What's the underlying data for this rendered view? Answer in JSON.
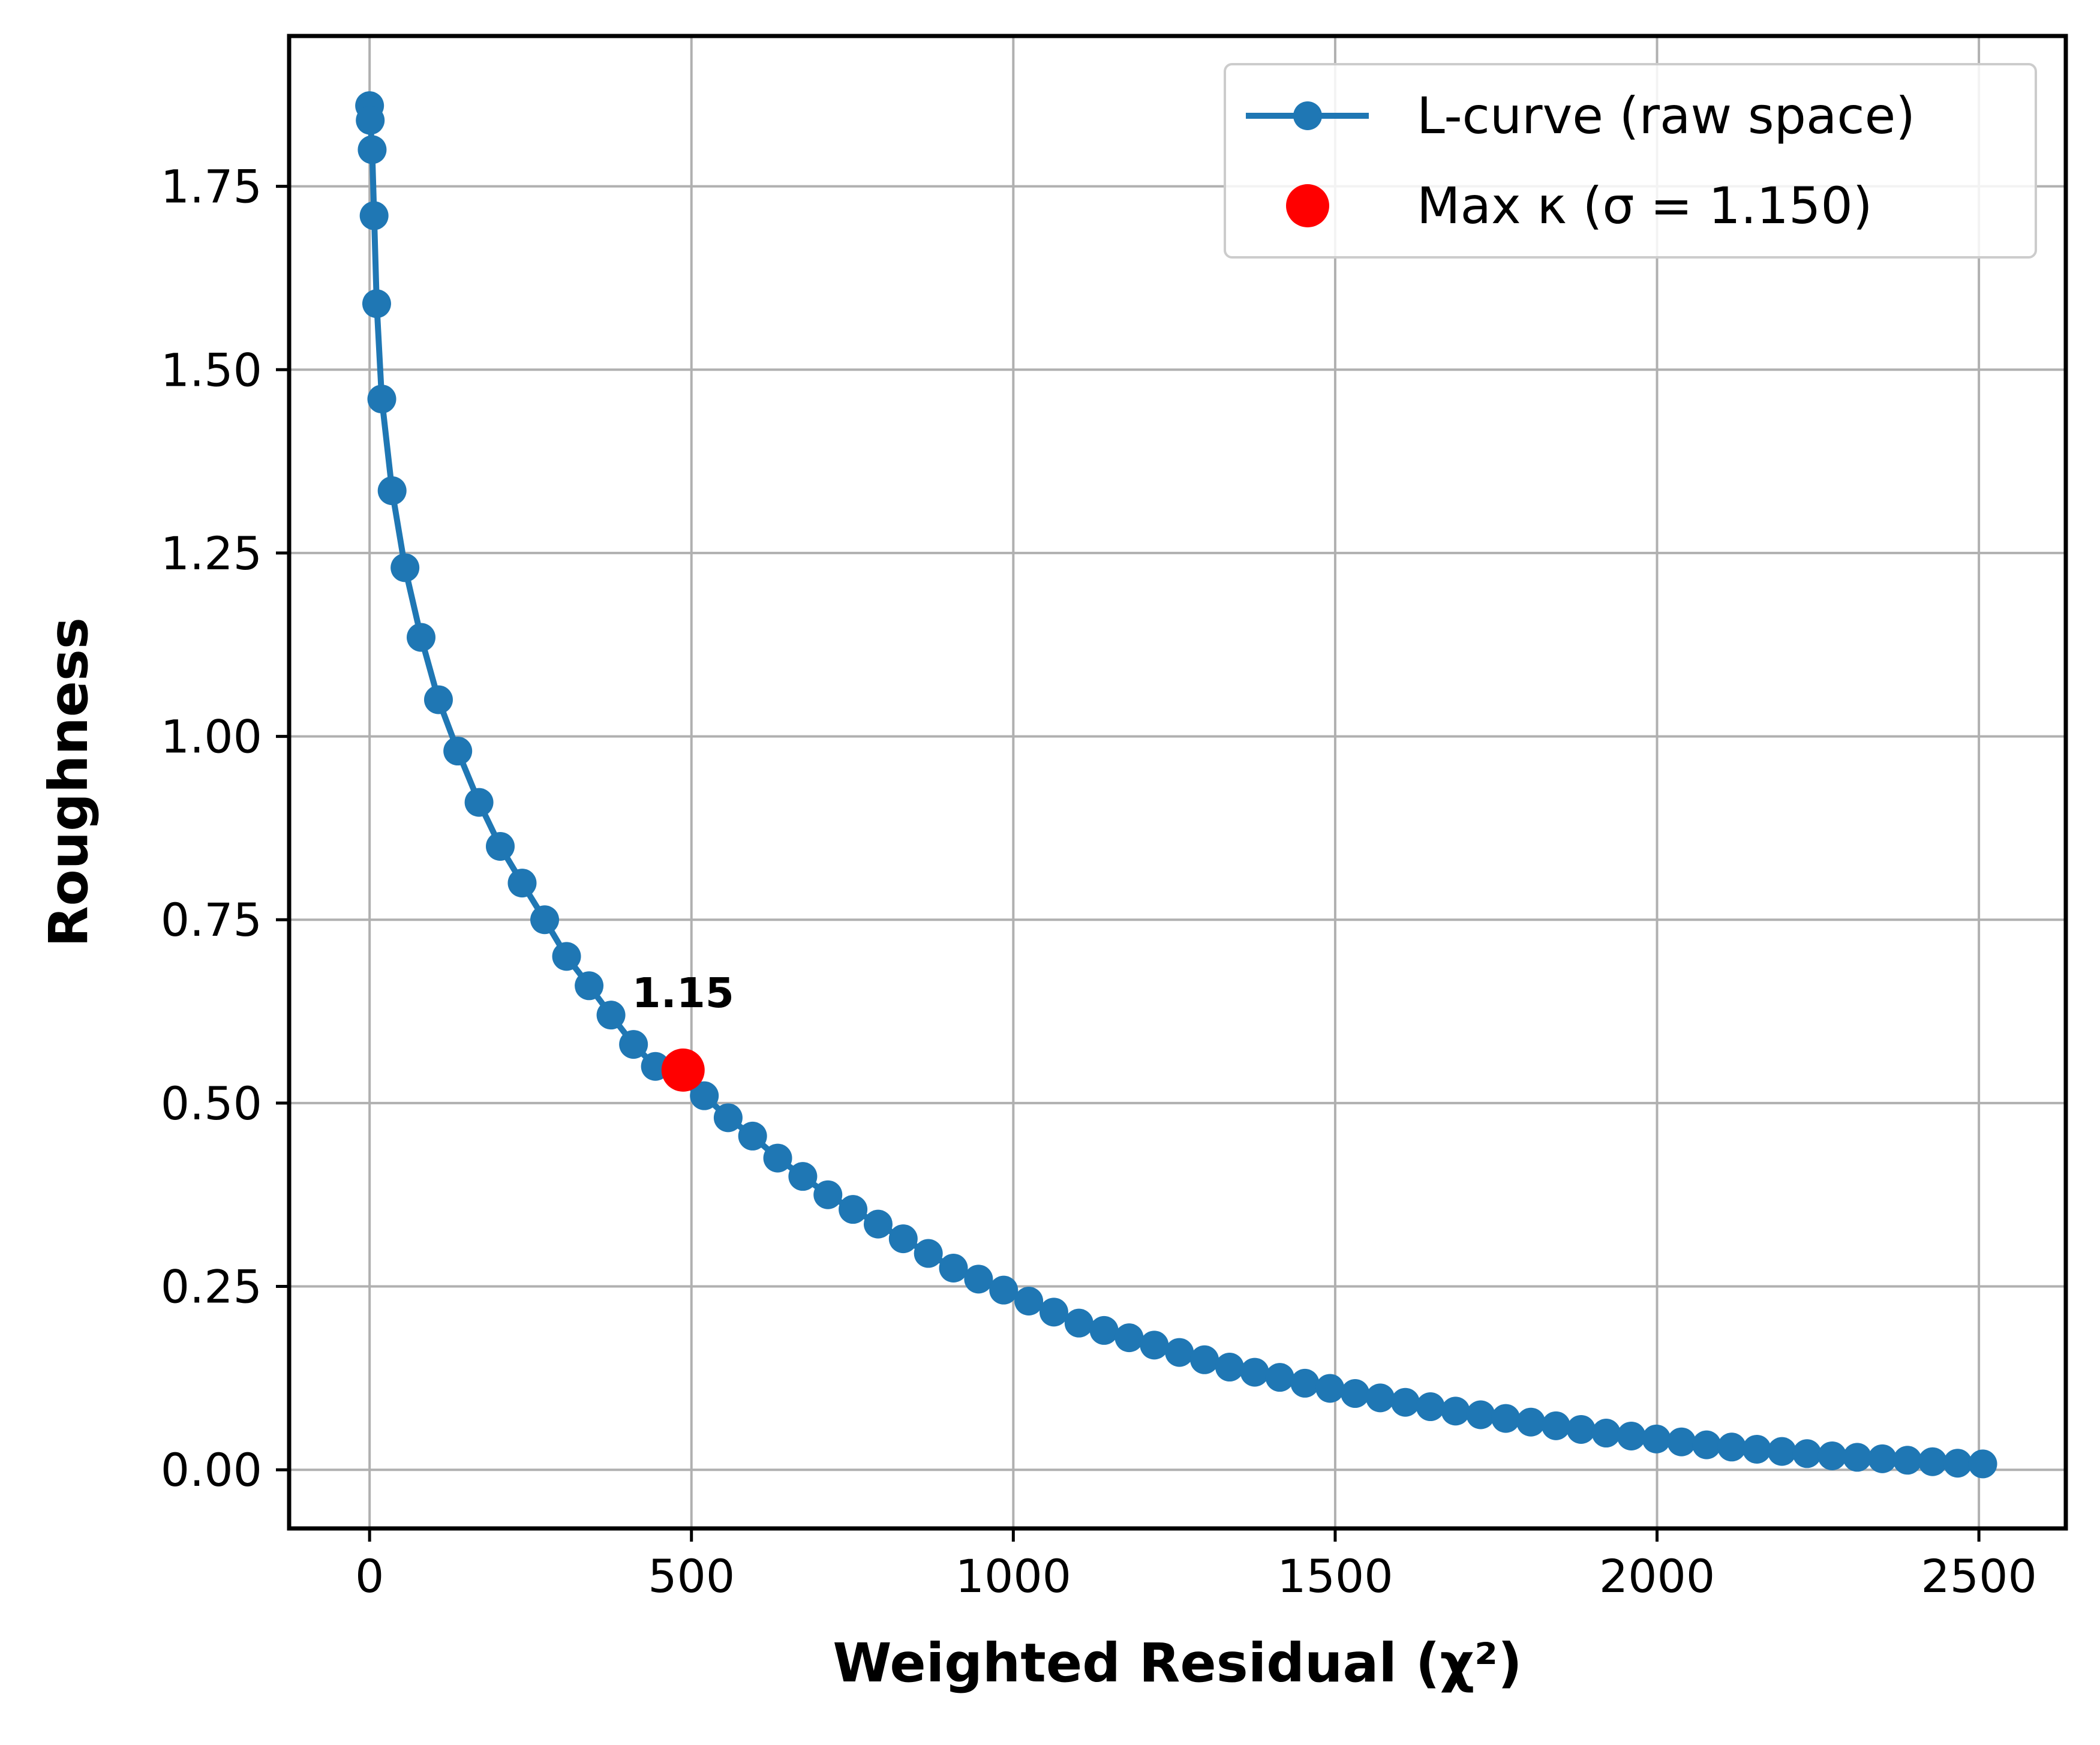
{
  "chart_data": {
    "type": "line",
    "xlabel": "Weighted Residual (χ²)",
    "ylabel": "Roughness",
    "xlim": [
      -125,
      2635
    ],
    "ylim": [
      -0.08,
      1.955
    ],
    "x_ticks": [
      0,
      500,
      1000,
      1500,
      2000,
      2500
    ],
    "x_tick_labels": [
      "0",
      "500",
      "1000",
      "1500",
      "2000",
      "2500"
    ],
    "y_ticks": [
      0.0,
      0.25,
      0.5,
      0.75,
      1.0,
      1.25,
      1.5,
      1.75
    ],
    "y_tick_labels": [
      "0.00",
      "0.25",
      "0.50",
      "0.75",
      "1.00",
      "1.25",
      "1.50",
      "1.75"
    ],
    "grid": true,
    "legend": {
      "position": "top-right",
      "entries": [
        {
          "label": "L-curve (raw space)",
          "marker": "line-circle",
          "color": "#1f77b4"
        },
        {
          "label": "Max κ (σ = 1.150)",
          "marker": "circle",
          "color": "#ff0000"
        }
      ]
    },
    "series": [
      {
        "name": "L-curve (raw space)",
        "color": "#1f77b4",
        "x": [
          0,
          1,
          4,
          7,
          11,
          19,
          35,
          55,
          80,
          107,
          137,
          170,
          203,
          237,
          272,
          306,
          341,
          375,
          410,
          444,
          520,
          557,
          595,
          634,
          673,
          712,
          751,
          790,
          829,
          868,
          907,
          946,
          985,
          1024,
          1063,
          1102,
          1141,
          1180,
          1219,
          1258,
          1297,
          1336,
          1375,
          1414,
          1453,
          1492,
          1531,
          1570,
          1609,
          1648,
          1687,
          1726,
          1765,
          1804,
          1843,
          1882,
          1921,
          1960,
          1999,
          2038,
          2077,
          2116,
          2155,
          2194,
          2233,
          2272,
          2311,
          2350,
          2389,
          2428,
          2467,
          2506
        ],
        "y": [
          1.86,
          1.84,
          1.8,
          1.71,
          1.59,
          1.46,
          1.335,
          1.23,
          1.135,
          1.05,
          0.98,
          0.91,
          0.85,
          0.8,
          0.75,
          0.7,
          0.66,
          0.62,
          0.58,
          0.55,
          0.51,
          0.48,
          0.455,
          0.425,
          0.4,
          0.375,
          0.355,
          0.335,
          0.315,
          0.295,
          0.275,
          0.26,
          0.245,
          0.23,
          0.215,
          0.2,
          0.19,
          0.18,
          0.17,
          0.16,
          0.15,
          0.14,
          0.133,
          0.126,
          0.118,
          0.111,
          0.104,
          0.098,
          0.092,
          0.086,
          0.08,
          0.075,
          0.07,
          0.065,
          0.06,
          0.055,
          0.05,
          0.046,
          0.042,
          0.038,
          0.034,
          0.031,
          0.028,
          0.025,
          0.022,
          0.019,
          0.017,
          0.015,
          0.013,
          0.011,
          0.009,
          0.008
        ]
      },
      {
        "name": "Max κ (σ = 1.150)",
        "color": "#ff0000",
        "x": [
          487
        ],
        "y": [
          0.545
        ]
      }
    ],
    "annotations": [
      {
        "text": "1.15",
        "x": 487,
        "y": 0.545
      }
    ]
  }
}
